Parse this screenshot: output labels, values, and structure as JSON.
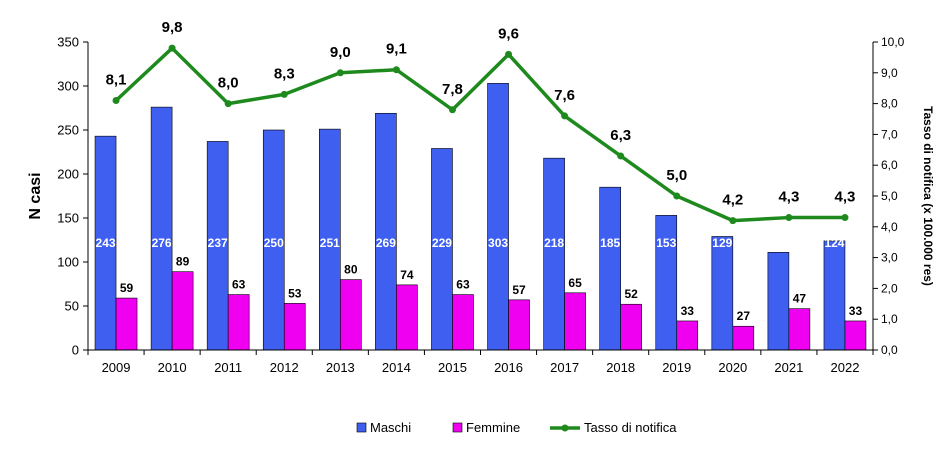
{
  "chart_data": {
    "type": "bar",
    "categories": [
      "2009",
      "2010",
      "2011",
      "2012",
      "2013",
      "2014",
      "2015",
      "2016",
      "2017",
      "2018",
      "2019",
      "2020",
      "2021",
      "2022"
    ],
    "series": [
      {
        "name": "Maschi",
        "type": "bar",
        "axis": "left",
        "color": "#3F5FF0",
        "values": [
          243,
          276,
          237,
          250,
          251,
          269,
          229,
          303,
          218,
          185,
          153,
          129,
          111,
          124
        ]
      },
      {
        "name": "Femmine",
        "type": "bar",
        "axis": "left",
        "color": "#F000F0",
        "values": [
          59,
          89,
          63,
          53,
          80,
          74,
          63,
          57,
          65,
          52,
          33,
          27,
          47,
          33
        ]
      },
      {
        "name": "Tasso di notifica",
        "type": "line",
        "axis": "right",
        "color": "#1E8A1E",
        "values": [
          8.1,
          9.8,
          8.0,
          8.3,
          9.0,
          9.1,
          7.8,
          9.6,
          7.6,
          6.3,
          5.0,
          4.2,
          4.3,
          4.3
        ],
        "labels": [
          "8,1",
          "9,8",
          "8,0",
          "8,3",
          "9,0",
          "9,1",
          "7,8",
          "9,6",
          "7,6",
          "6,3",
          "5,0",
          "4,2",
          "4,3",
          "4,3"
        ]
      }
    ],
    "ylabel": "N casi",
    "ylim": [
      0,
      350
    ],
    "yticks": [
      "0",
      "50",
      "100",
      "150",
      "200",
      "250",
      "300",
      "350"
    ],
    "y2label": "Tasso di notifica (x 100.000 res)",
    "y2lim": [
      0,
      10
    ],
    "y2ticks": [
      "0,0",
      "1,0",
      "2,0",
      "3,0",
      "4,0",
      "5,0",
      "6,0",
      "7,0",
      "8,0",
      "9,0",
      "10,0"
    ],
    "grid": false,
    "legend": {
      "position": "bottom",
      "entries": [
        "Maschi",
        "Femmine",
        "Tasso di notifica"
      ]
    }
  }
}
